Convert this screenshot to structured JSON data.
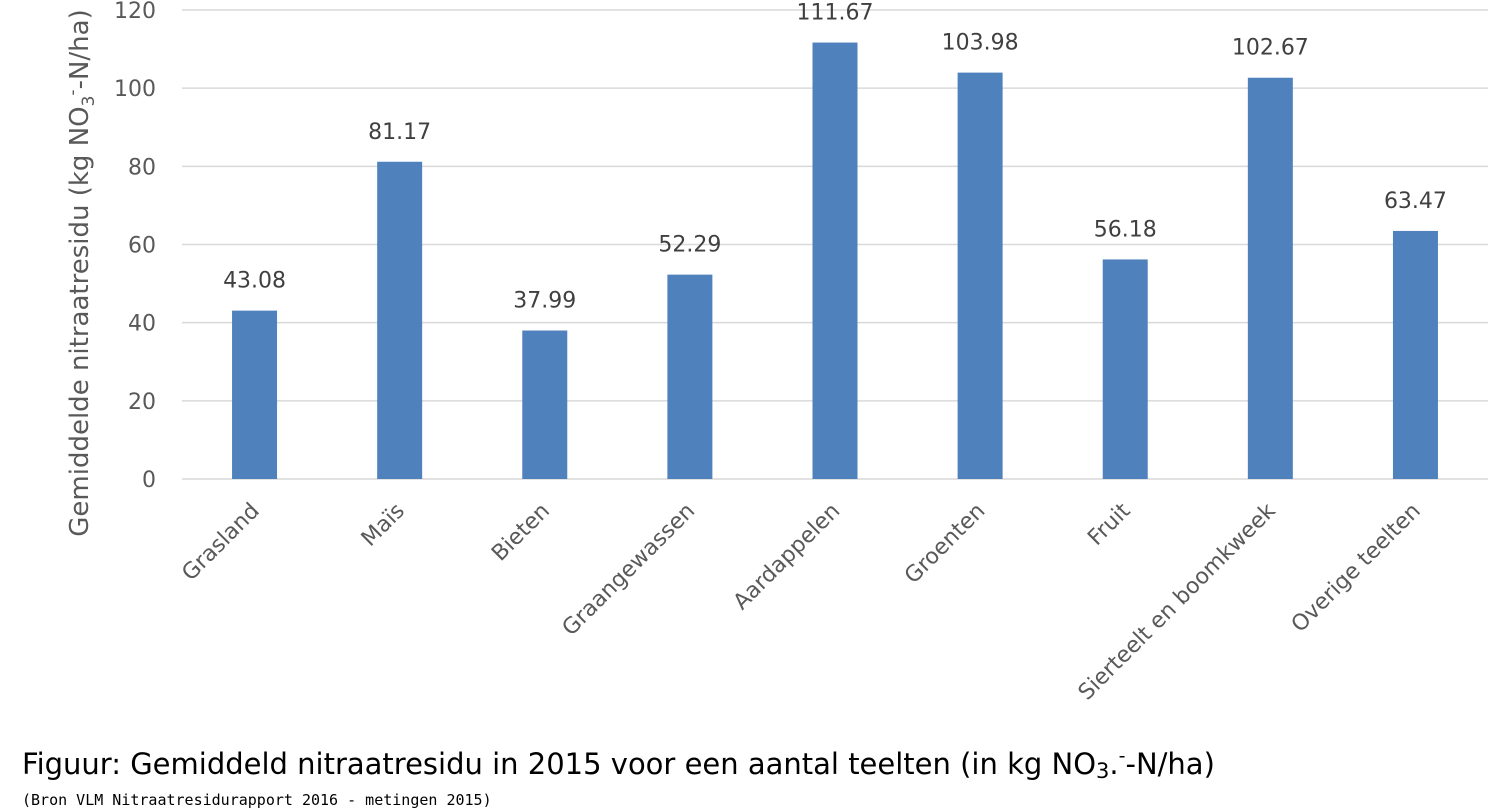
{
  "chart_data": {
    "type": "bar",
    "categories": [
      "Grasland",
      "Maïs",
      "Bieten",
      "Graangewassen",
      "Aardappelen",
      "Groenten",
      "Fruit",
      "Sierteelt en boomkweek",
      "Overige teelten"
    ],
    "values": [
      43.08,
      81.17,
      37.99,
      52.29,
      111.67,
      103.98,
      56.18,
      102.67,
      63.47
    ],
    "value_labels": [
      "43.08",
      "81.17",
      "37.99",
      "52.29",
      "111.67",
      "103.98",
      "56.18",
      "102.67",
      "63.47"
    ],
    "ylabel_parts": [
      "Gemiddelde nitraatresidu (kg NO",
      "3",
      "-",
      "-N/ha)"
    ],
    "ylim": [
      0,
      120
    ],
    "yticks": [
      0,
      20,
      40,
      60,
      80,
      100,
      120
    ],
    "ytick_labels": [
      "0",
      "20",
      "40",
      "60",
      "80",
      "100",
      "120"
    ],
    "bar_color": "#4f81bd",
    "grid": true,
    "legend": false
  },
  "caption": {
    "prefix": "Figuur: Gemiddeld nitraatresidu in 2015 voor een aantal teelten (in kg NO",
    "subscript": "3",
    "dot": ".",
    "superscript": "-",
    "suffix": "-N/ha)"
  },
  "source": "(Bron VLM Nitraatresidurapport 2016 - metingen 2015)"
}
